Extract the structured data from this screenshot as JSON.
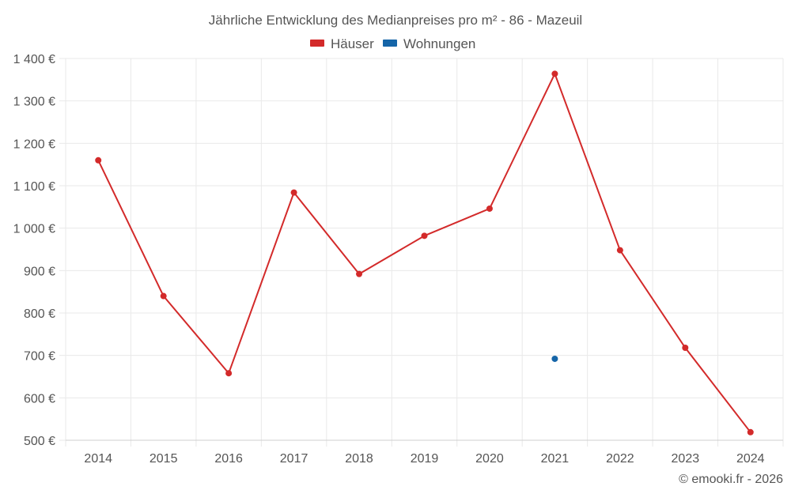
{
  "chart_data": {
    "type": "line",
    "title": "Jährliche Entwicklung des Medianpreises pro m² - 86 - Mazeuil",
    "categories": [
      "2014",
      "2015",
      "2016",
      "2017",
      "2018",
      "2019",
      "2020",
      "2021",
      "2022",
      "2023",
      "2024"
    ],
    "series": [
      {
        "name": "Häuser",
        "color": "#d32a2a",
        "values": [
          1160,
          840,
          658,
          1084,
          892,
          982,
          1046,
          1364,
          948,
          718,
          519
        ]
      },
      {
        "name": "Wohnungen",
        "color": "#1565a8",
        "values": [
          null,
          null,
          null,
          null,
          null,
          null,
          null,
          692,
          null,
          null,
          null
        ]
      }
    ],
    "ylim": [
      500,
      1400
    ],
    "yticks": [
      500,
      600,
      700,
      800,
      900,
      1000,
      1100,
      1200,
      1300,
      1400
    ],
    "ytick_labels": [
      "500 €",
      "600 €",
      "700 €",
      "800 €",
      "900 €",
      "1 000 €",
      "1 100 €",
      "1 200 €",
      "1 300 €",
      "1 400 €"
    ],
    "grid": true,
    "legend_position": "top-center"
  },
  "credit": "© emooki.fr - 2026"
}
